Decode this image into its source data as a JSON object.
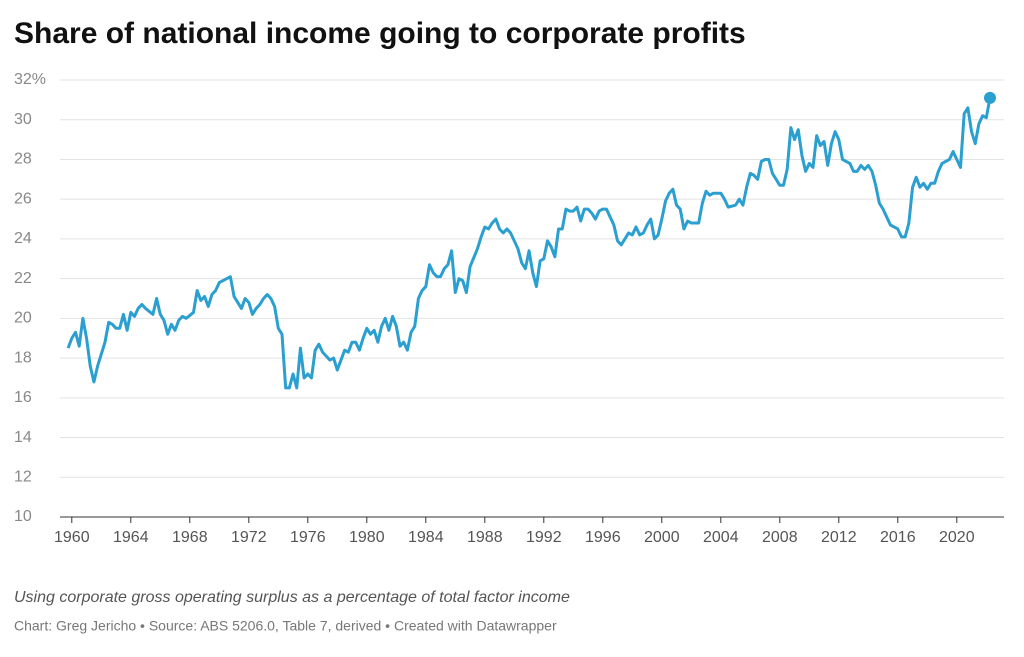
{
  "chart_data": {
    "type": "line",
    "title": "Share of national income going to corporate profits",
    "description": "Using corporate gross operating surplus as a percentage of total factor income",
    "source": "Chart: Greg Jericho • Source: ABS 5206.0, Table 7, derived • Created with Datawrapper",
    "x": [
      1959.75,
      1960.0,
      1960.25,
      1960.5,
      1960.75,
      1961.0,
      1961.25,
      1961.5,
      1961.75,
      1962.25,
      1962.5,
      1962.75,
      1963.0,
      1963.25,
      1963.5,
      1963.75,
      1964.0,
      1964.25,
      1964.5,
      1964.75,
      1965.0,
      1965.5,
      1965.75,
      1966.0,
      1966.25,
      1966.5,
      1966.75,
      1967.0,
      1967.25,
      1967.5,
      1967.75,
      1968.25,
      1968.5,
      1968.75,
      1969.0,
      1969.25,
      1969.5,
      1969.75,
      1970.0,
      1970.5,
      1970.75,
      1971.0,
      1971.25,
      1971.5,
      1971.75,
      1972.0,
      1972.25,
      1972.5,
      1972.75,
      1973.0,
      1973.25,
      1973.5,
      1973.75,
      1974.0,
      1974.25,
      1974.5,
      1974.75,
      1975.0,
      1975.25,
      1975.5,
      1975.75,
      1976.0,
      1976.25,
      1976.5,
      1976.75,
      1977.0,
      1977.25,
      1977.5,
      1977.75,
      1978.0,
      1978.25,
      1978.5,
      1978.75,
      1979.0,
      1979.25,
      1979.5,
      1979.75,
      1980.0,
      1980.25,
      1980.5,
      1980.75,
      1981.0,
      1981.25,
      1981.5,
      1981.75,
      1982.0,
      1982.25,
      1982.5,
      1982.75,
      1983.0,
      1983.25,
      1983.5,
      1983.75,
      1984.0,
      1984.25,
      1984.5,
      1984.75,
      1985.0,
      1985.25,
      1985.5,
      1985.75,
      1986.0,
      1986.25,
      1986.5,
      1986.75,
      1987.0,
      1987.5,
      1987.75,
      1988.0,
      1988.25,
      1988.5,
      1988.75,
      1989.0,
      1989.25,
      1989.5,
      1989.75,
      1990.0,
      1990.25,
      1990.5,
      1990.75,
      1991.0,
      1991.25,
      1991.5,
      1991.75,
      1992.0,
      1992.25,
      1992.5,
      1992.75,
      1993.0,
      1993.25,
      1993.5,
      1993.75,
      1994.0,
      1994.25,
      1994.5,
      1994.75,
      1995.0,
      1995.25,
      1995.5,
      1995.75,
      1996.0,
      1996.25,
      1996.5,
      1996.75,
      1997.0,
      1997.25,
      1997.5,
      1997.75,
      1998.0,
      1998.25,
      1998.5,
      1998.75,
      1999.0,
      1999.25,
      1999.5,
      1999.75,
      2000.0,
      2000.25,
      2000.5,
      2000.75,
      2001.0,
      2001.25,
      2001.5,
      2001.75,
      2002.0,
      2002.5,
      2002.75,
      2003.0,
      2003.25,
      2003.5,
      2004.0,
      2004.25,
      2004.5,
      2005.0,
      2005.25,
      2005.5,
      2005.75,
      2006.0,
      2006.25,
      2006.5,
      2006.75,
      2007.0,
      2007.25,
      2007.5,
      2007.75,
      2008.0,
      2008.25,
      2008.5,
      2008.75,
      2009.0,
      2009.25,
      2009.5,
      2009.75,
      2010.0,
      2010.25,
      2010.5,
      2010.75,
      2011.0,
      2011.25,
      2011.5,
      2011.75,
      2012.0,
      2012.25,
      2012.5,
      2012.75,
      2013.0,
      2013.25,
      2013.5,
      2013.75,
      2014.0,
      2014.25,
      2014.5,
      2014.75,
      2015.0,
      2015.25,
      2015.5,
      2015.75,
      2016.0,
      2016.25,
      2016.5,
      2016.75,
      2017.0,
      2017.25,
      2017.5,
      2017.75,
      2018.0,
      2018.25,
      2018.5,
      2018.75,
      2019.0,
      2019.5,
      2019.75,
      2020.0,
      2020.25,
      2020.5,
      2020.75,
      2021.0,
      2021.25,
      2021.5,
      2021.75,
      2022.0,
      2022.25
    ],
    "values": [
      18.5,
      19.0,
      19.3,
      18.6,
      20.0,
      19.0,
      17.6,
      16.8,
      17.6,
      18.8,
      19.8,
      19.7,
      19.5,
      19.5,
      20.2,
      19.4,
      20.3,
      20.1,
      20.5,
      20.7,
      20.5,
      20.2,
      21.0,
      20.2,
      19.9,
      19.2,
      19.7,
      19.4,
      19.9,
      20.1,
      20.0,
      20.3,
      21.4,
      20.9,
      21.1,
      20.6,
      21.2,
      21.4,
      21.8,
      22.0,
      22.1,
      21.1,
      20.8,
      20.5,
      21.0,
      20.8,
      20.2,
      20.5,
      20.7,
      21.0,
      21.2,
      21.0,
      20.6,
      19.5,
      19.2,
      16.5,
      16.5,
      17.2,
      16.5,
      18.5,
      17.0,
      17.2,
      17.0,
      18.4,
      18.7,
      18.3,
      18.1,
      17.9,
      18.0,
      17.4,
      17.9,
      18.4,
      18.3,
      18.8,
      18.8,
      18.4,
      19.0,
      19.5,
      19.2,
      19.4,
      18.8,
      19.6,
      20.0,
      19.4,
      20.1,
      19.6,
      18.6,
      18.8,
      18.4,
      19.3,
      19.6,
      21.0,
      21.4,
      21.6,
      22.7,
      22.3,
      22.1,
      22.1,
      22.5,
      22.7,
      23.4,
      21.3,
      22.0,
      21.9,
      21.3,
      22.6,
      23.5,
      24.1,
      24.6,
      24.5,
      24.8,
      25.0,
      24.5,
      24.3,
      24.5,
      24.3,
      23.9,
      23.5,
      22.8,
      22.5,
      23.4,
      22.3,
      21.6,
      22.9,
      23.0,
      23.9,
      23.6,
      23.1,
      24.5,
      24.5,
      25.5,
      25.4,
      25.4,
      25.6,
      24.9,
      25.5,
      25.5,
      25.3,
      25.0,
      25.4,
      25.5,
      25.5,
      25.1,
      24.7,
      23.9,
      23.7,
      24.0,
      24.3,
      24.2,
      24.6,
      24.2,
      24.3,
      24.7,
      25.0,
      24.0,
      24.2,
      25.0,
      25.9,
      26.3,
      26.5,
      25.7,
      25.5,
      24.5,
      24.9,
      24.8,
      24.8,
      25.8,
      26.4,
      26.2,
      26.3,
      26.3,
      26.0,
      25.6,
      25.7,
      26.0,
      25.7,
      26.6,
      27.3,
      27.2,
      27.0,
      27.9,
      28.0,
      28.0,
      27.3,
      27.0,
      26.7,
      26.7,
      27.5,
      29.6,
      29.0,
      29.5,
      28.2,
      27.4,
      27.8,
      27.6,
      29.2,
      28.7,
      28.9,
      27.7,
      28.8,
      29.4,
      29.0,
      28.0,
      27.9,
      27.8,
      27.4,
      27.4,
      27.7,
      27.5,
      27.7,
      27.4,
      26.7,
      25.8,
      25.5,
      25.1,
      24.7,
      24.6,
      24.5,
      24.1,
      24.1,
      24.8,
      26.6,
      27.1,
      26.6,
      26.8,
      26.5,
      26.8,
      26.8,
      27.4,
      27.8,
      28.0,
      28.4,
      28.0,
      27.6,
      30.3,
      30.6,
      29.4,
      28.8,
      29.8,
      30.2,
      30.1,
      31.1
    ],
    "color": "#2a9fd0",
    "xlim": [
      1959.2,
      2023.2
    ],
    "xticks": [
      1960,
      1964,
      1968,
      1972,
      1976,
      1980,
      1984,
      1988,
      1992,
      1996,
      2000,
      2004,
      2008,
      2012,
      2016,
      2020
    ],
    "ylim": [
      10,
      32
    ],
    "yticks": [
      10,
      12,
      14,
      16,
      18,
      20,
      22,
      24,
      26,
      28,
      30,
      {
        "value": 32,
        "label": "32%"
      }
    ],
    "grid": true
  }
}
